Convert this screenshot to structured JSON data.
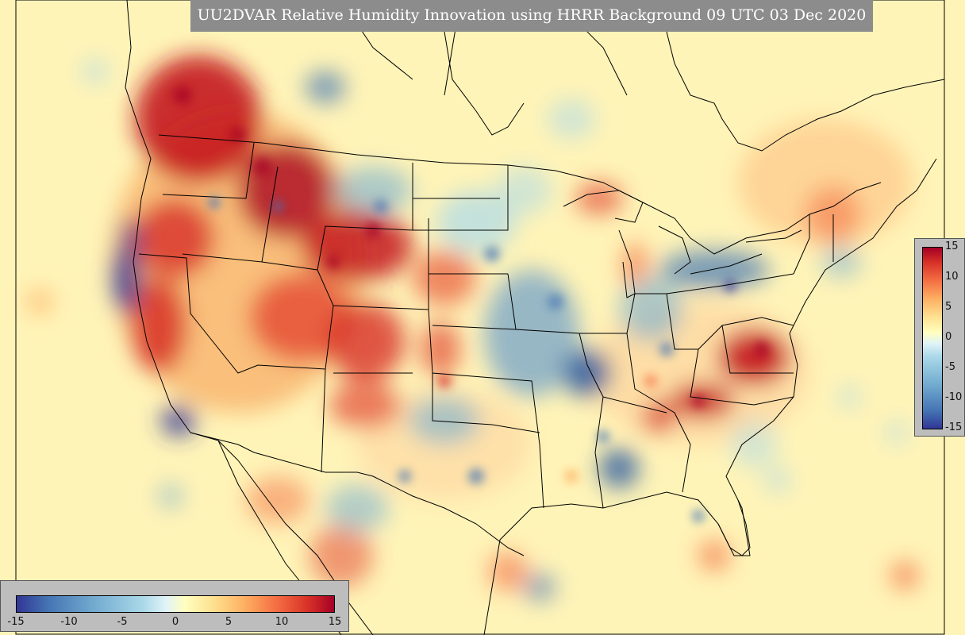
{
  "title": "UU2DVAR Relative Humidity Innovation using HRRR Background 09 UTC 03 Dec 2020",
  "colorbar": {
    "ticks": [
      "15",
      "10",
      "5",
      "0",
      "-5",
      "-10",
      "-15"
    ],
    "bottom_ticks": [
      "-15",
      "-10",
      "-5",
      "0",
      "5",
      "10",
      "15"
    ],
    "range": [
      -15,
      15
    ],
    "colors": [
      "#313695",
      "#4575b4",
      "#74add1",
      "#abd9e9",
      "#e0f3f8",
      "#ffffbf",
      "#fee090",
      "#fdae61",
      "#f46d43",
      "#d73027",
      "#a50026"
    ]
  },
  "map_colors": {
    "background": "#fff7bc",
    "border_lines": "#000000"
  }
}
